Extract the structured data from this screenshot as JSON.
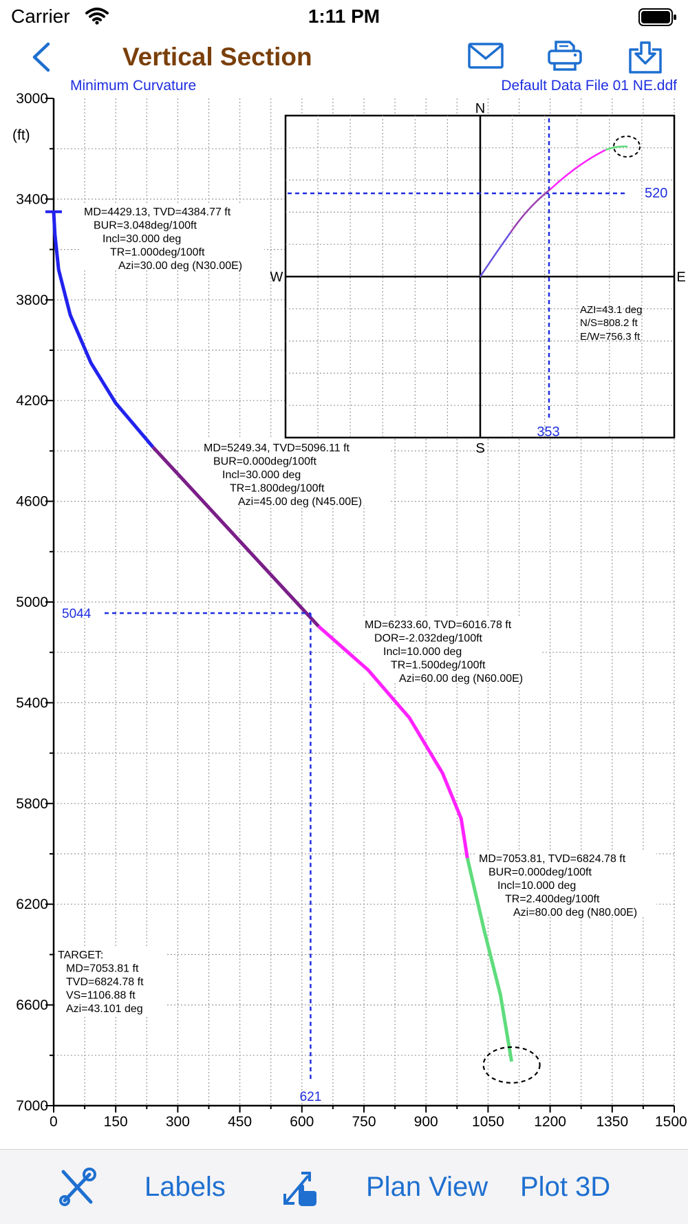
{
  "status_bar": {
    "carrier": "Carrier",
    "time": "1:11 PM"
  },
  "header": {
    "title": "Vertical Section",
    "method": "Minimum Curvature",
    "file": "Default Data File 01 NE.ddf"
  },
  "colors": {
    "title": "#7a3f0a",
    "accent": "#1e2ee0",
    "tab_blue": "#1e6fd0",
    "seg1": "#2222ee",
    "seg2": "#7a1e88",
    "seg3": "#ff22ff",
    "seg4": "#5fdc7c"
  },
  "icons": {
    "back": "chevron-left-icon",
    "mail": "mail-icon",
    "print": "printer-icon",
    "export": "export-icon",
    "tools": "tools-icon",
    "pointer": "pointer-icon"
  },
  "tabbar": {
    "labels": "Labels",
    "plan_view": "Plan View",
    "plot_3d": "Plot 3D"
  },
  "chart_data": {
    "type": "line",
    "ylabel": "(ft)",
    "ylim": [
      3000,
      7000
    ],
    "xlim": [
      0,
      1500
    ],
    "y_ticks": [
      "3000",
      "3400",
      "3800",
      "4200",
      "4600",
      "5000",
      "5400",
      "5800",
      "6200",
      "6600",
      "7000"
    ],
    "x_ticks": [
      "0",
      "150",
      "300",
      "450",
      "600",
      "750",
      "900",
      "1050",
      "1200",
      "1350",
      "1500"
    ],
    "grid": true,
    "segments": [
      {
        "color": "#2222ee",
        "points": [
          [
            0,
            3450
          ],
          [
            3,
            3540
          ],
          [
            12,
            3680
          ],
          [
            40,
            3860
          ],
          [
            90,
            4050
          ],
          [
            150,
            4210
          ],
          [
            240,
            4384.77
          ]
        ]
      },
      {
        "color": "#7a1e88",
        "points": [
          [
            240,
            4384.77
          ],
          [
            640,
            5096.11
          ]
        ]
      },
      {
        "color": "#ff22ff",
        "points": [
          [
            640,
            5096.11
          ],
          [
            760,
            5270
          ],
          [
            860,
            5460
          ],
          [
            940,
            5680
          ],
          [
            985,
            5860
          ],
          [
            1000,
            6016.78
          ]
        ]
      },
      {
        "color": "#5fdc7c",
        "points": [
          [
            1000,
            6016.78
          ],
          [
            1040,
            6300
          ],
          [
            1080,
            6560
          ],
          [
            1106.88,
            6824.78
          ]
        ]
      }
    ],
    "crosshair": {
      "x": 621,
      "y": 5044,
      "x_label": "621",
      "y_label": "5044"
    },
    "labels": [
      {
        "lines": [
          "MD=4429.13, TVD=4384.77 ft",
          "BUR=3.048deg/100ft",
          "Incl=30.000 deg",
          "TR=1.000deg/100ft",
          "Azi=30.00 deg (N30.00E)"
        ]
      },
      {
        "lines": [
          "MD=5249.34, TVD=5096.11 ft",
          "BUR=0.000deg/100ft",
          "Incl=30.000 deg",
          "TR=1.800deg/100ft",
          "Azi=45.00 deg (N45.00E)"
        ]
      },
      {
        "lines": [
          "MD=6233.60, TVD=6016.78 ft",
          "DOR=-2.032deg/100ft",
          "Incl=10.000 deg",
          "TR=1.500deg/100ft",
          "Azi=60.00 deg (N60.00E)"
        ]
      },
      {
        "lines": [
          "MD=7053.81, TVD=6824.78 ft",
          "BUR=0.000deg/100ft",
          "Incl=10.000 deg",
          "TR=2.400deg/100ft",
          "Azi=80.00 deg (N80.00E)"
        ]
      }
    ],
    "target": [
      "TARGET:",
      "MD=7053.81 ft",
      "TVD=6824.78 ft",
      "VS=1106.88 ft",
      "Azi=43.101 deg"
    ]
  },
  "inset": {
    "compass": {
      "n": "N",
      "s": "S",
      "e": "E",
      "w": "W"
    },
    "crosshair": {
      "ns_label": "520",
      "ew_label": "353"
    },
    "info": [
      "AZI=43.1 deg",
      "N/S=808.2 ft",
      "E/W=756.3 ft"
    ]
  }
}
